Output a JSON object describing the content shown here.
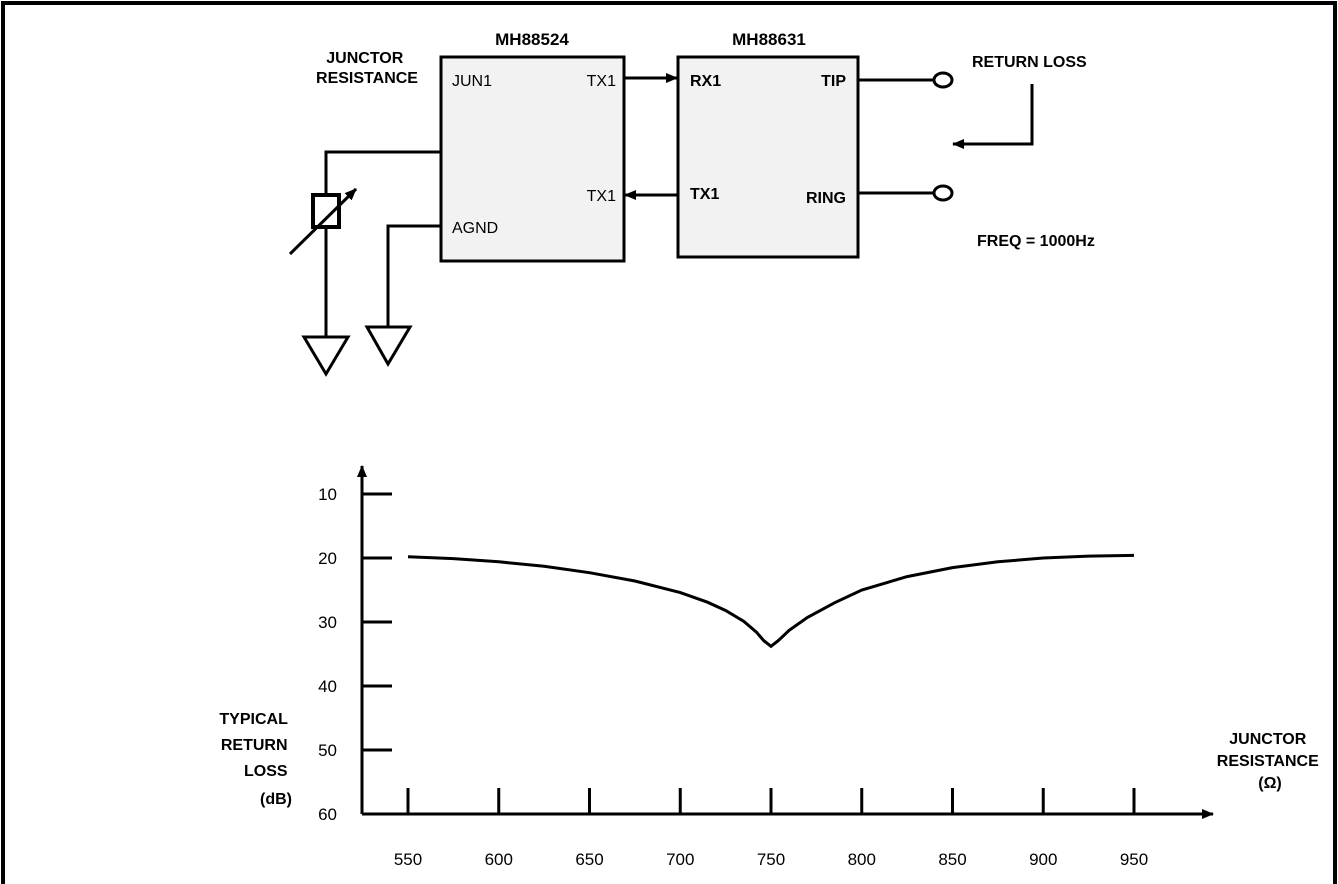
{
  "schematic": {
    "chip1": {
      "name": "MH88524",
      "pins": {
        "jun1": "JUN1",
        "tx1_top": "TX1",
        "tx1_bottom": "TX1",
        "agnd": "AGND"
      }
    },
    "chip2": {
      "name": "MH88631",
      "pins": {
        "rx1": "RX1",
        "tip": "TIP",
        "tx1": "TX1",
        "ring": "RING"
      }
    },
    "junctor_label": [
      "JUNCTOR",
      "RESISTANCE"
    ],
    "return_loss_label": "RETURN LOSS",
    "freq_label": "FREQ = 1000Hz"
  },
  "chart_data": {
    "type": "line",
    "ylabel": [
      "TYPICAL",
      "RETURN",
      "LOSS",
      "(dB)"
    ],
    "xlabel": [
      "JUNCTOR",
      "RESISTANCE",
      "(Ω)"
    ],
    "y_ticks": [
      "10",
      "20",
      "30",
      "40",
      "50",
      "60"
    ],
    "x_ticks": [
      "550",
      "600",
      "650",
      "700",
      "750",
      "800",
      "850",
      "900",
      "950"
    ],
    "y_range": [
      10,
      60
    ],
    "y_inverted": true,
    "x_range": [
      550,
      950
    ],
    "series": [
      {
        "x": [
          550,
          575,
          600,
          625,
          650,
          675,
          700,
          715,
          725,
          735,
          742,
          746,
          750,
          754,
          760,
          770,
          785,
          800,
          825,
          850,
          875,
          900,
          925,
          950
        ],
        "y": [
          19.8,
          20.1,
          20.6,
          21.3,
          22.3,
          23.6,
          25.4,
          26.9,
          28.2,
          29.9,
          31.6,
          32.9,
          33.8,
          32.9,
          31.3,
          29.3,
          27.0,
          25.0,
          22.9,
          21.5,
          20.6,
          20.0,
          19.7,
          19.6
        ]
      }
    ]
  }
}
